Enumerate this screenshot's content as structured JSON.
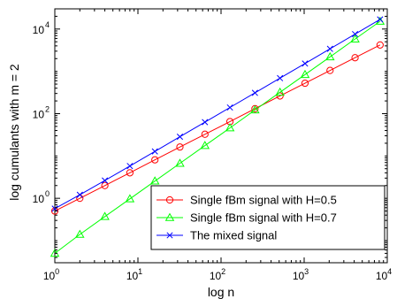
{
  "chart_data": {
    "type": "line",
    "xscale": "log",
    "yscale": "log",
    "xlabel": "log n",
    "ylabel": "log cumulants with m = 2",
    "xlim": [
      1,
      10000
    ],
    "ylim": [
      0.03,
      30000
    ],
    "x_ticks": [
      {
        "value": 1,
        "base": "10",
        "exp": "0"
      },
      {
        "value": 10,
        "base": "10",
        "exp": "1"
      },
      {
        "value": 100,
        "base": "10",
        "exp": "2"
      },
      {
        "value": 1000,
        "base": "10",
        "exp": "3"
      },
      {
        "value": 10000,
        "base": "10",
        "exp": "4"
      }
    ],
    "y_ticks": [
      {
        "value": 1,
        "base": "10",
        "exp": "0"
      },
      {
        "value": 100,
        "base": "10",
        "exp": "2"
      },
      {
        "value": 10000,
        "base": "10",
        "exp": "4"
      }
    ],
    "grid": false,
    "legend_position": "bottom-right",
    "x": [
      1,
      2,
      4,
      8,
      16,
      32,
      64,
      128,
      256,
      512,
      1024,
      2048,
      4096,
      8192
    ],
    "series": [
      {
        "name": "Single fBm signal with H=0.5",
        "color": "#ff0000",
        "marker": "circle",
        "values": [
          0.5,
          1.0,
          2.0,
          4.0,
          8.1,
          16.3,
          32.6,
          65,
          131,
          262,
          525,
          1050,
          2100,
          4200
        ]
      },
      {
        "name": "Single fBm signal with H=0.7",
        "color": "#00ff00",
        "marker": "triangle",
        "values": [
          0.05,
          0.14,
          0.37,
          0.97,
          2.55,
          6.7,
          17.6,
          46,
          122,
          320,
          840,
          2200,
          5800,
          15200
        ]
      },
      {
        "name": "The mixed signal",
        "color": "#0000ff",
        "marker": "x",
        "values": [
          0.57,
          1.21,
          2.63,
          5.8,
          12.8,
          28.5,
          63,
          140,
          310,
          690,
          1530,
          3400,
          7600,
          16900
        ]
      }
    ]
  }
}
